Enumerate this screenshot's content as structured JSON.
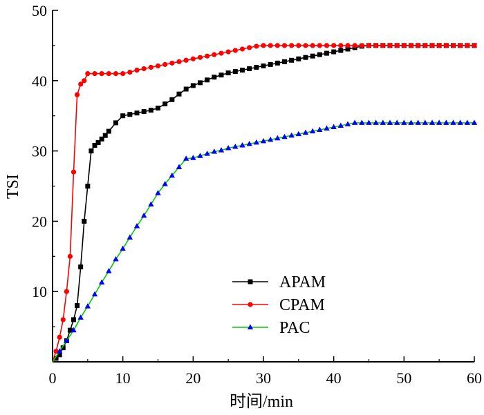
{
  "chart_data": {
    "type": "line",
    "title": "",
    "xlabel": "时间/min",
    "ylabel": "TSI",
    "xlim": [
      0,
      60
    ],
    "ylim": [
      0,
      50
    ],
    "x_ticks": [
      "0",
      "10",
      "20",
      "30",
      "40",
      "50",
      "60"
    ],
    "y_ticks": [
      "10",
      "20",
      "30",
      "40",
      "50"
    ],
    "grid": false,
    "legend_position": "lower-right-center",
    "series": [
      {
        "name": "APAM",
        "color": "#000000",
        "marker": "square",
        "x": [
          0.5,
          1.0,
          1.5,
          2.0,
          2.5,
          3.0,
          3.5,
          4.0,
          4.5,
          5.0,
          5.5,
          6.0,
          6.5,
          7.0,
          7.5,
          8.0,
          9.0,
          10.0,
          11.0,
          12.0,
          13.0,
          14.0,
          15.0,
          16.0,
          17.0,
          18.0,
          19.0,
          20.0,
          21.0,
          22.0,
          23.0,
          24.0,
          25.0,
          26.0,
          27.0,
          28.0,
          29.0,
          30.0,
          31.0,
          32.0,
          33.0,
          34.0,
          35.0,
          36.0,
          37.0,
          38.0,
          39.0,
          40.0,
          41.0,
          42.0,
          43.0,
          44.0,
          45.0,
          46.0,
          47.0,
          48.0,
          49.0,
          50.0,
          51.0,
          52.0,
          53.0,
          54.0,
          55.0,
          56.0,
          57.0,
          58.0,
          59.0,
          60.0
        ],
        "y": [
          0.5,
          1.0,
          2.0,
          3.0,
          4.5,
          6.0,
          8.0,
          13.5,
          20.0,
          25.0,
          30.0,
          30.8,
          31.2,
          31.7,
          32.2,
          32.8,
          34.0,
          35.0,
          35.2,
          35.4,
          35.6,
          35.8,
          36.1,
          36.7,
          37.3,
          38.1,
          38.8,
          39.3,
          39.7,
          40.1,
          40.5,
          40.8,
          41.1,
          41.3,
          41.5,
          41.7,
          41.9,
          42.1,
          42.3,
          42.5,
          42.7,
          42.9,
          43.1,
          43.3,
          43.5,
          43.7,
          43.9,
          44.1,
          44.3,
          44.5,
          44.7,
          44.9,
          45.0,
          45.0,
          45.0,
          45.0,
          45.0,
          45.0,
          45.0,
          45.0,
          45.0,
          45.0,
          45.0,
          45.0,
          45.0,
          45.0,
          45.0,
          45.0
        ]
      },
      {
        "name": "CPAM",
        "color": "#ff0000",
        "marker": "circle",
        "x": [
          0.5,
          1.0,
          1.5,
          2.0,
          2.5,
          3.0,
          3.5,
          4.0,
          4.5,
          5.0,
          6.0,
          7.0,
          8.0,
          9.0,
          10.0,
          11.0,
          12.0,
          13.0,
          14.0,
          15.0,
          16.0,
          17.0,
          18.0,
          19.0,
          20.0,
          21.0,
          22.0,
          23.0,
          24.0,
          25.0,
          26.0,
          27.0,
          28.0,
          29.0,
          30.0,
          31.0,
          32.0,
          33.0,
          34.0,
          35.0,
          36.0,
          37.0,
          38.0,
          39.0,
          40.0,
          41.0,
          42.0,
          43.0,
          44.0,
          45.0,
          46.0,
          47.0,
          48.0,
          49.0,
          50.0,
          51.0,
          52.0,
          53.0,
          54.0,
          55.0,
          56.0,
          57.0,
          58.0,
          59.0,
          60.0
        ],
        "y": [
          1.5,
          3.5,
          6.0,
          10.0,
          15.0,
          27.0,
          38.0,
          39.5,
          40.0,
          41.0,
          41.0,
          41.0,
          41.0,
          41.0,
          41.0,
          41.2,
          41.5,
          41.7,
          41.9,
          42.1,
          42.3,
          42.5,
          42.7,
          42.9,
          43.1,
          43.3,
          43.5,
          43.7,
          43.9,
          44.1,
          44.3,
          44.5,
          44.7,
          44.9,
          45.0,
          45.0,
          45.0,
          45.0,
          45.0,
          45.0,
          45.0,
          45.0,
          45.0,
          45.0,
          45.0,
          45.0,
          45.0,
          45.0,
          45.0,
          45.0,
          45.0,
          45.0,
          45.0,
          45.0,
          45.0,
          45.0,
          45.0,
          45.0,
          45.0,
          45.0,
          45.0,
          45.0,
          45.0,
          45.0,
          45.0
        ]
      },
      {
        "name": "PAC",
        "color": "#0000ff",
        "line_color": "#00cc00",
        "marker": "triangle",
        "x": [
          1.0,
          2.0,
          3.0,
          4.0,
          5.0,
          6.0,
          7.0,
          8.0,
          9.0,
          10.0,
          11.0,
          12.0,
          13.0,
          14.0,
          15.0,
          16.0,
          17.0,
          18.0,
          19.0,
          20.0,
          21.0,
          22.0,
          23.0,
          24.0,
          25.0,
          26.0,
          27.0,
          28.0,
          29.0,
          30.0,
          31.0,
          32.0,
          33.0,
          34.0,
          35.0,
          36.0,
          37.0,
          38.0,
          39.0,
          40.0,
          41.0,
          42.0,
          43.0,
          44.0,
          45.0,
          46.0,
          47.0,
          48.0,
          49.0,
          50.0,
          51.0,
          52.0,
          53.0,
          54.0,
          55.0,
          56.0,
          57.0,
          58.0,
          59.0,
          60.0
        ],
        "y": [
          1.5,
          3.0,
          4.5,
          6.3,
          7.9,
          9.6,
          11.3,
          12.9,
          14.6,
          16.1,
          17.7,
          19.3,
          20.8,
          22.4,
          24.0,
          25.3,
          26.5,
          27.7,
          28.9,
          29.0,
          29.3,
          29.6,
          29.9,
          30.1,
          30.4,
          30.6,
          30.8,
          31.0,
          31.2,
          31.4,
          31.6,
          31.8,
          32.0,
          32.2,
          32.4,
          32.6,
          32.8,
          33.0,
          33.2,
          33.4,
          33.6,
          33.8,
          34.0,
          34.0,
          34.0,
          34.0,
          34.0,
          34.0,
          34.0,
          34.0,
          34.0,
          34.0,
          34.0,
          34.0,
          34.0,
          34.0,
          34.0,
          34.0,
          34.0,
          34.0
        ]
      }
    ]
  }
}
